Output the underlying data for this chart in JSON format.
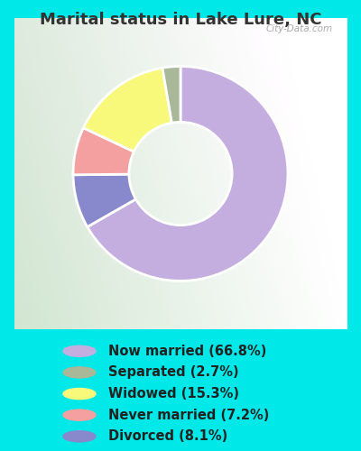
{
  "title": "Marital status in Lake Lure, NC",
  "values": [
    66.8,
    8.1,
    7.2,
    15.3,
    2.7
  ],
  "colors": [
    "#c4aee0",
    "#8888cc",
    "#f5a0a0",
    "#f8f87a",
    "#a8b898"
  ],
  "legend_labels": [
    "Now married (66.8%)",
    "Separated (2.7%)",
    "Widowed (15.3%)",
    "Never married (7.2%)",
    "Divorced (8.1%)"
  ],
  "legend_colors": [
    "#c4aee0",
    "#a8b898",
    "#f8f87a",
    "#f5a0a0",
    "#8888cc"
  ],
  "background_color_outer": "#00e8e8",
  "title_fontsize": 13,
  "legend_fontsize": 10.5,
  "start_angle": 90,
  "watermark": "City-Data.com",
  "title_color": "#333333"
}
